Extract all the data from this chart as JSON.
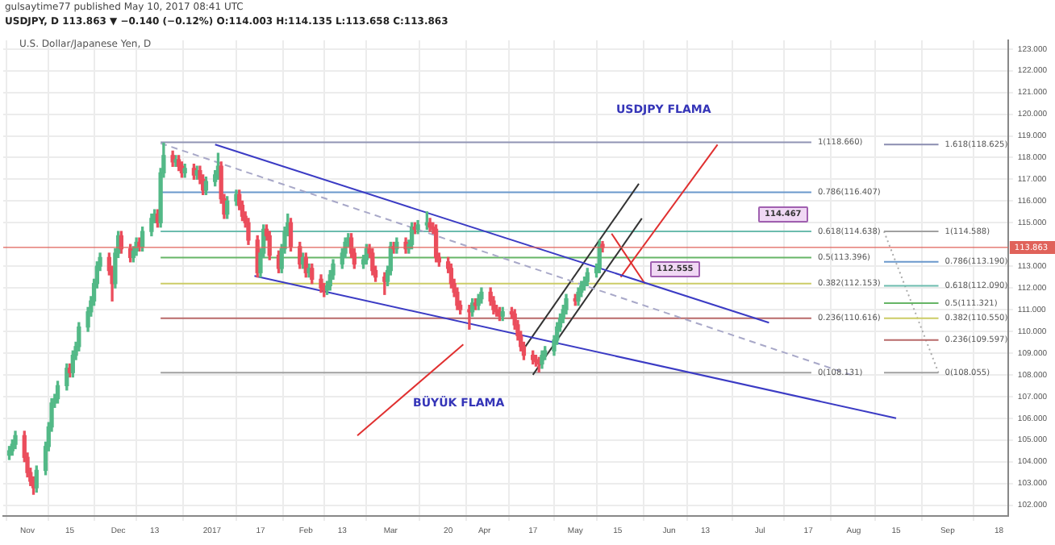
{
  "chart_data": {
    "type": "candlestick",
    "title": "gulsaytime77 published May 10, 2017 08:41 UTC",
    "subtitle": "USDJPY, D 113.863 ▼ −0.140 (−0.12%) O:114.003 H:114.135 L:113.658 C:113.863",
    "x": [
      "2016-10-26",
      "2016-10-27",
      "2016-10-28",
      "2016-10-31",
      "2016-11-01",
      "2016-11-02",
      "2016-11-03",
      "2016-11-04",
      "2016-11-07",
      "2016-11-08",
      "2016-11-09",
      "2016-11-10",
      "2016-11-11",
      "2016-11-14",
      "2016-11-15",
      "2016-11-16",
      "2016-11-17",
      "2016-11-18",
      "2016-11-21",
      "2016-11-22",
      "2016-11-23",
      "2016-11-24",
      "2016-11-25",
      "2016-11-28",
      "2016-11-29",
      "2016-11-30",
      "2016-12-01",
      "2016-12-02",
      "2016-12-05",
      "2016-12-06",
      "2016-12-07",
      "2016-12-08",
      "2016-12-09",
      "2016-12-12",
      "2016-12-13",
      "2016-12-14",
      "2016-12-15",
      "2016-12-16",
      "2016-12-19",
      "2016-12-20",
      "2016-12-21",
      "2016-12-22",
      "2016-12-23",
      "2016-12-26",
      "2016-12-27",
      "2016-12-28",
      "2016-12-29",
      "2016-12-30",
      "2017-01-02",
      "2017-01-03",
      "2017-01-04",
      "2017-01-05",
      "2017-01-06",
      "2017-01-09",
      "2017-01-10",
      "2017-01-11",
      "2017-01-12",
      "2017-01-13",
      "2017-01-16",
      "2017-01-17",
      "2017-01-18",
      "2017-01-19",
      "2017-01-20",
      "2017-01-23",
      "2017-01-24",
      "2017-01-25",
      "2017-01-26",
      "2017-01-27",
      "2017-01-30",
      "2017-01-31",
      "2017-02-01",
      "2017-02-02",
      "2017-02-03",
      "2017-02-06",
      "2017-02-07",
      "2017-02-08",
      "2017-02-09",
      "2017-02-10",
      "2017-02-13",
      "2017-02-14",
      "2017-02-15",
      "2017-02-16",
      "2017-02-17",
      "2017-02-20",
      "2017-02-21",
      "2017-02-22",
      "2017-02-23",
      "2017-02-24",
      "2017-02-27",
      "2017-02-28",
      "2017-03-01",
      "2017-03-02",
      "2017-03-03",
      "2017-03-06",
      "2017-03-07",
      "2017-03-08",
      "2017-03-09",
      "2017-03-10",
      "2017-03-13",
      "2017-03-14",
      "2017-03-15",
      "2017-03-16",
      "2017-03-17",
      "2017-03-20",
      "2017-03-21",
      "2017-03-22",
      "2017-03-23",
      "2017-03-24",
      "2017-03-27",
      "2017-03-28",
      "2017-03-29",
      "2017-03-30",
      "2017-03-31",
      "2017-04-03",
      "2017-04-04",
      "2017-04-05",
      "2017-04-06",
      "2017-04-07",
      "2017-04-10",
      "2017-04-11",
      "2017-04-12",
      "2017-04-13",
      "2017-04-14",
      "2017-04-17",
      "2017-04-18",
      "2017-04-19",
      "2017-04-20",
      "2017-04-21",
      "2017-04-24",
      "2017-04-25",
      "2017-04-26",
      "2017-04-27",
      "2017-04-28",
      "2017-05-01",
      "2017-05-02",
      "2017-05-03",
      "2017-05-04",
      "2017-05-05",
      "2017-05-08",
      "2017-05-09",
      "2017-05-10"
    ],
    "ohlc": [
      [
        104.3,
        104.7,
        104.1,
        104.5
      ],
      [
        104.5,
        105.0,
        104.3,
        104.8
      ],
      [
        104.8,
        105.4,
        104.6,
        105.2
      ],
      [
        105.2,
        105.4,
        104.0,
        104.2
      ],
      [
        104.2,
        104.4,
        103.3,
        103.5
      ],
      [
        103.5,
        103.7,
        102.9,
        103.1
      ],
      [
        103.1,
        103.3,
        102.5,
        102.8
      ],
      [
        102.8,
        103.8,
        102.6,
        103.6
      ],
      [
        103.6,
        104.9,
        103.4,
        104.7
      ],
      [
        104.7,
        105.8,
        104.5,
        105.6
      ],
      [
        105.6,
        106.9,
        105.4,
        106.7
      ],
      [
        106.7,
        107.1,
        106.5,
        106.9
      ],
      [
        106.9,
        107.7,
        106.7,
        107.5
      ],
      [
        107.5,
        108.5,
        107.3,
        108.3
      ],
      [
        108.3,
        108.5,
        107.9,
        108.1
      ],
      [
        108.1,
        109.1,
        107.9,
        108.9
      ],
      [
        108.9,
        109.5,
        108.7,
        109.3
      ],
      [
        109.3,
        110.4,
        109.1,
        110.2
      ],
      [
        110.2,
        111.1,
        110.0,
        110.9
      ],
      [
        110.9,
        111.6,
        110.7,
        111.4
      ],
      [
        111.4,
        112.4,
        111.2,
        112.2
      ],
      [
        112.2,
        113.2,
        112.0,
        113.0
      ],
      [
        113.0,
        113.6,
        112.8,
        113.4
      ],
      [
        113.4,
        113.6,
        112.6,
        112.8
      ],
      [
        112.8,
        113.0,
        111.4,
        112.2
      ],
      [
        112.2,
        113.8,
        112.0,
        113.6
      ],
      [
        113.6,
        114.6,
        113.4,
        114.4
      ],
      [
        114.4,
        114.6,
        113.6,
        113.8
      ],
      [
        113.8,
        114.0,
        113.2,
        113.4
      ],
      [
        113.4,
        113.9,
        113.2,
        113.7
      ],
      [
        113.7,
        114.3,
        113.5,
        114.1
      ],
      [
        114.1,
        114.3,
        113.7,
        113.9
      ],
      [
        113.9,
        114.8,
        113.7,
        114.6
      ],
      [
        114.6,
        115.4,
        114.4,
        115.2
      ],
      [
        115.2,
        115.6,
        115.0,
        115.4
      ],
      [
        115.4,
        115.6,
        114.8,
        115.0
      ],
      [
        115.0,
        117.5,
        114.8,
        117.3
      ],
      [
        117.3,
        118.66,
        117.1,
        118.1
      ],
      [
        118.1,
        118.3,
        117.6,
        117.8
      ],
      [
        117.8,
        118.1,
        117.6,
        117.9
      ],
      [
        117.9,
        118.1,
        117.4,
        117.6
      ],
      [
        117.6,
        117.8,
        117.1,
        117.3
      ],
      [
        117.3,
        117.7,
        117.1,
        117.5
      ],
      [
        117.5,
        117.7,
        117.0,
        117.2
      ],
      [
        117.2,
        117.6,
        117.0,
        117.4
      ],
      [
        117.4,
        117.6,
        116.8,
        117.0
      ],
      [
        117.0,
        117.2,
        116.3,
        116.5
      ],
      [
        116.5,
        117.1,
        116.3,
        116.9
      ],
      [
        116.9,
        117.4,
        116.7,
        117.2
      ],
      [
        117.2,
        118.2,
        117.0,
        117.6
      ],
      [
        117.6,
        117.8,
        115.9,
        116.1
      ],
      [
        116.1,
        116.3,
        115.2,
        115.4
      ],
      [
        115.4,
        116.2,
        115.2,
        116.0
      ],
      [
        116.0,
        116.5,
        115.8,
        116.3
      ],
      [
        116.3,
        116.5,
        115.6,
        115.8
      ],
      [
        115.8,
        116.0,
        115.1,
        115.3
      ],
      [
        115.3,
        115.5,
        114.8,
        115.0
      ],
      [
        115.0,
        115.2,
        114.0,
        114.2
      ],
      [
        114.2,
        114.4,
        112.5,
        112.7
      ],
      [
        112.7,
        113.8,
        112.5,
        113.6
      ],
      [
        113.6,
        114.9,
        113.4,
        114.7
      ],
      [
        114.7,
        114.9,
        114.2,
        114.4
      ],
      [
        114.4,
        114.6,
        113.3,
        113.5
      ],
      [
        113.5,
        113.7,
        112.7,
        112.9
      ],
      [
        112.9,
        114.0,
        112.7,
        113.8
      ],
      [
        113.8,
        114.8,
        113.6,
        114.6
      ],
      [
        114.6,
        115.4,
        114.4,
        115.0
      ],
      [
        115.0,
        115.2,
        113.7,
        113.9
      ],
      [
        113.9,
        114.1,
        112.9,
        113.1
      ],
      [
        113.1,
        113.6,
        112.9,
        113.4
      ],
      [
        113.4,
        113.6,
        112.5,
        112.7
      ],
      [
        112.7,
        113.1,
        112.5,
        112.9
      ],
      [
        112.9,
        113.1,
        112.2,
        112.4
      ],
      [
        112.4,
        112.6,
        111.8,
        112.0
      ],
      [
        112.0,
        112.2,
        111.6,
        111.9
      ],
      [
        111.9,
        112.3,
        111.7,
        112.1
      ],
      [
        112.1,
        112.8,
        111.9,
        112.6
      ],
      [
        112.6,
        113.3,
        112.4,
        113.1
      ],
      [
        113.1,
        113.8,
        112.9,
        113.6
      ],
      [
        113.6,
        114.3,
        113.4,
        114.1
      ],
      [
        114.1,
        114.5,
        113.9,
        114.3
      ],
      [
        114.3,
        114.5,
        113.4,
        113.6
      ],
      [
        113.6,
        113.8,
        112.9,
        113.1
      ],
      [
        113.1,
        113.5,
        112.9,
        113.3
      ],
      [
        113.3,
        114.0,
        113.1,
        113.8
      ],
      [
        113.8,
        114.0,
        113.4,
        113.6
      ],
      [
        113.6,
        113.8,
        112.6,
        112.8
      ],
      [
        112.8,
        113.0,
        112.3,
        112.5
      ],
      [
        112.5,
        112.7,
        111.7,
        112.3
      ],
      [
        112.3,
        113.0,
        112.1,
        112.8
      ],
      [
        112.8,
        114.1,
        112.6,
        113.9
      ],
      [
        113.9,
        114.1,
        113.6,
        113.8
      ],
      [
        113.8,
        114.3,
        113.6,
        114.1
      ],
      [
        114.1,
        114.3,
        113.6,
        113.8
      ],
      [
        113.8,
        114.2,
        113.6,
        114.0
      ],
      [
        114.0,
        115.0,
        113.8,
        114.8
      ],
      [
        114.8,
        115.0,
        114.5,
        114.7
      ],
      [
        114.7,
        115.1,
        114.5,
        114.9
      ],
      [
        114.9,
        115.5,
        114.7,
        115.0
      ],
      [
        115.0,
        115.2,
        114.6,
        114.8
      ],
      [
        114.8,
        115.0,
        114.5,
        114.7
      ],
      [
        114.7,
        114.9,
        113.2,
        113.4
      ],
      [
        113.4,
        113.6,
        113.0,
        113.2
      ],
      [
        113.2,
        113.4,
        112.7,
        112.9
      ],
      [
        112.9,
        113.1,
        112.0,
        112.2
      ],
      [
        112.2,
        112.4,
        111.6,
        111.8
      ],
      [
        111.8,
        112.0,
        111.0,
        111.2
      ],
      [
        111.2,
        111.4,
        110.8,
        111.0
      ],
      [
        111.0,
        111.2,
        110.1,
        110.9
      ],
      [
        110.9,
        111.5,
        110.7,
        111.3
      ],
      [
        111.3,
        111.5,
        111.0,
        111.2
      ],
      [
        111.2,
        111.7,
        111.0,
        111.5
      ],
      [
        111.5,
        112.0,
        111.3,
        111.8
      ],
      [
        111.8,
        112.0,
        111.2,
        111.4
      ],
      [
        111.4,
        111.6,
        110.8,
        111.0
      ],
      [
        111.0,
        111.2,
        110.7,
        110.9
      ],
      [
        110.9,
        111.1,
        110.5,
        110.7
      ],
      [
        110.7,
        111.1,
        110.5,
        110.9
      ],
      [
        110.9,
        111.1,
        110.6,
        110.8
      ],
      [
        110.8,
        111.0,
        110.1,
        110.3
      ],
      [
        110.3,
        110.5,
        109.6,
        109.8
      ],
      [
        109.8,
        110.0,
        109.1,
        109.3
      ],
      [
        109.3,
        109.5,
        108.7,
        108.9
      ],
      [
        108.9,
        109.1,
        108.5,
        108.7
      ],
      [
        108.7,
        108.9,
        108.4,
        108.6
      ],
      [
        108.6,
        108.8,
        108.13,
        108.5
      ],
      [
        108.5,
        109.1,
        108.3,
        108.9
      ],
      [
        108.9,
        109.3,
        108.7,
        109.1
      ],
      [
        109.1,
        109.8,
        108.9,
        109.6
      ],
      [
        109.6,
        110.4,
        109.4,
        110.2
      ],
      [
        110.2,
        110.8,
        110.0,
        110.6
      ],
      [
        110.6,
        111.2,
        110.4,
        111.0
      ],
      [
        111.0,
        111.7,
        110.8,
        111.5
      ],
      [
        111.5,
        111.7,
        111.2,
        111.4
      ],
      [
        111.4,
        112.0,
        111.2,
        111.8
      ],
      [
        111.8,
        112.3,
        111.6,
        112.1
      ],
      [
        112.1,
        112.5,
        111.9,
        112.3
      ],
      [
        112.3,
        112.9,
        112.1,
        112.7
      ],
      [
        112.7,
        113.1,
        112.5,
        112.9
      ],
      [
        112.9,
        114.2,
        112.7,
        114.003
      ],
      [
        114.003,
        114.135,
        113.658,
        113.863
      ]
    ],
    "series": [
      {
        "type": "line",
        "x": [
          "2017-01-02",
          "2017-07-04"
        ],
        "values": [
          118.6,
          110.4
        ],
        "color": "#3b3bc4"
      },
      {
        "type": "line",
        "x": [
          "2017-01-15",
          "2017-08-15"
        ],
        "values": [
          112.55,
          106.0
        ],
        "color": "#3b3bc4"
      },
      {
        "type": "line",
        "x": [
          "2016-12-15",
          "2017-07-31"
        ],
        "values": [
          118.66,
          108.0
        ],
        "color": "#a8a8c8",
        "line_style": "dashed"
      },
      {
        "type": "line",
        "x": [
          "2017-04-14",
          "2017-05-22"
        ],
        "values": [
          109.2,
          116.8
        ],
        "color": "#333333"
      },
      {
        "type": "line",
        "x": [
          "2017-04-17",
          "2017-05-23"
        ],
        "values": [
          108.0,
          115.2
        ],
        "color": "#333333"
      },
      {
        "type": "line",
        "x": [
          "2017-02-18",
          "2017-03-25"
        ],
        "values": [
          105.2,
          109.4
        ],
        "color": "#e03030"
      },
      {
        "type": "line",
        "x": [
          "2017-05-16",
          "2017-06-17"
        ],
        "values": [
          112.5,
          118.6
        ],
        "color": "#e03030"
      },
      {
        "type": "line",
        "x": [
          "2017-05-13",
          "2017-05-24"
        ],
        "values": [
          114.5,
          112.2
        ],
        "color": "#e03030"
      },
      {
        "type": "line",
        "x": [
          "2016-12-15",
          "2017-07-18"
        ],
        "values": [
          118.7,
          118.7
        ],
        "color": "#9094b4"
      },
      {
        "type": "line",
        "x": [
          "2016-12-15",
          "2017-07-18"
        ],
        "values": [
          116.4,
          116.4
        ],
        "color": "#6a98cc"
      },
      {
        "type": "line",
        "x": [
          "2016-12-15",
          "2017-07-18"
        ],
        "values": [
          114.6,
          114.6
        ],
        "color": "#6cbcae"
      },
      {
        "type": "line",
        "x": [
          "2016-12-15",
          "2017-07-18"
        ],
        "values": [
          113.4,
          113.4
        ],
        "color": "#66b566"
      },
      {
        "type": "line",
        "x": [
          "2016-12-15",
          "2017-07-18"
        ],
        "values": [
          112.2,
          112.2
        ],
        "color": "#cccc66"
      },
      {
        "type": "line",
        "x": [
          "2016-12-15",
          "2017-07-18"
        ],
        "values": [
          110.6,
          110.6
        ],
        "color": "#b86a6a"
      },
      {
        "type": "line",
        "x": [
          "2016-12-15",
          "2017-07-18"
        ],
        "values": [
          108.1,
          108.1
        ],
        "color": "#a0a0a0"
      },
      {
        "type": "line",
        "x": [
          "2017-08-11",
          "2017-08-29"
        ],
        "values": [
          118.6,
          118.6
        ],
        "color": "#8a8db0"
      },
      {
        "type": "line",
        "x": [
          "2017-08-11",
          "2017-08-29"
        ],
        "values": [
          114.6,
          114.6
        ],
        "color": "#a0a0a0"
      },
      {
        "type": "line",
        "x": [
          "2017-08-11",
          "2017-08-29"
        ],
        "values": [
          113.2,
          113.2
        ],
        "color": "#6a98cc"
      },
      {
        "type": "line",
        "x": [
          "2017-08-11",
          "2017-08-29"
        ],
        "values": [
          112.1,
          112.1
        ],
        "color": "#6cbcae"
      },
      {
        "type": "line",
        "x": [
          "2017-08-11",
          "2017-08-29"
        ],
        "values": [
          111.3,
          111.3
        ],
        "color": "#66b566"
      },
      {
        "type": "line",
        "x": [
          "2017-08-11",
          "2017-08-29"
        ],
        "values": [
          110.6,
          110.6
        ],
        "color": "#cccc66"
      },
      {
        "type": "line",
        "x": [
          "2017-08-11",
          "2017-08-29"
        ],
        "values": [
          109.6,
          109.6
        ],
        "color": "#b86a6a"
      },
      {
        "type": "line",
        "x": [
          "2017-08-11",
          "2017-08-29"
        ],
        "values": [
          108.1,
          108.1
        ],
        "color": "#a0a0a0"
      },
      {
        "type": "line",
        "x": [
          "2017-08-11",
          "2017-08-29"
        ],
        "values": [
          114.6,
          108.1
        ],
        "color": "#aaaaaa",
        "line_style": "dotted"
      }
    ],
    "annotations": [
      "U.S. Dollar/Japanese Yen, D",
      "USDJPY  FLAMA",
      "BÜYÜK FLAMA",
      "114.467",
      "112.555",
      {
        "text": "1(118.660)",
        "x": "2017-07-18",
        "y": 118.7
      },
      {
        "text": "0.786(116.407)",
        "x": "2017-07-18",
        "y": 116.4
      },
      {
        "text": "0.618(114.638)",
        "x": "2017-07-18",
        "y": 114.6
      },
      {
        "text": "0.5(113.396)",
        "x": "2017-07-18",
        "y": 113.4
      },
      {
        "text": "0.382(112.153)",
        "x": "2017-07-18",
        "y": 112.2
      },
      {
        "text": "0.236(110.616)",
        "x": "2017-07-18",
        "y": 110.6
      },
      {
        "text": "0(108.131)",
        "x": "2017-07-18",
        "y": 108.1
      },
      {
        "text": "1.618(118.625)",
        "x": "2017-08-29",
        "y": 118.6
      },
      {
        "text": "1(114.588)",
        "x": "2017-08-29",
        "y": 114.6
      },
      {
        "text": "0.786(113.190)",
        "x": "2017-08-29",
        "y": 113.2
      },
      {
        "text": "0.618(112.090)",
        "x": "2017-08-29",
        "y": 112.1
      },
      {
        "text": "0.5(111.321)",
        "x": "2017-08-29",
        "y": 111.3
      },
      {
        "text": "0.382(110.550)",
        "x": "2017-08-29",
        "y": 110.6
      },
      {
        "text": "0.236(109.597)",
        "x": "2017-08-29",
        "y": 109.6
      },
      {
        "text": "0(108.055)",
        "x": "2017-08-29",
        "y": 108.1
      }
    ],
    "ref_lines": [
      {
        "axis": "y",
        "value": 113.863,
        "label": "113.863",
        "color": "#e0625a"
      }
    ],
    "xlim": [
      "2016-10-24",
      "2017-09-21"
    ],
    "xticks": [
      {
        "value": "2016-11-01",
        "label": "Nov"
      },
      {
        "value": "2016-11-15",
        "label": "15"
      },
      {
        "value": "2016-12-01",
        "label": "Dec"
      },
      {
        "value": "2016-12-13",
        "label": "13"
      },
      {
        "value": "2017-01-01",
        "label": "2017"
      },
      {
        "value": "2017-01-17",
        "label": "17"
      },
      {
        "value": "2017-02-01",
        "label": "Feb"
      },
      {
        "value": "2017-02-13",
        "label": "13"
      },
      {
        "value": "2017-03-01",
        "label": "Mar"
      },
      {
        "value": "2017-03-20",
        "label": "20"
      },
      {
        "value": "2017-04-01",
        "label": "Apr"
      },
      {
        "value": "2017-04-17",
        "label": "17"
      },
      {
        "value": "2017-05-01",
        "label": "May"
      },
      {
        "value": "2017-05-15",
        "label": "15"
      },
      {
        "value": "2017-06-01",
        "label": "Jun"
      },
      {
        "value": "2017-06-13",
        "label": "13"
      },
      {
        "value": "2017-07-01",
        "label": "Jul"
      },
      {
        "value": "2017-07-17",
        "label": "17"
      },
      {
        "value": "2017-08-01",
        "label": "Aug"
      },
      {
        "value": "2017-08-15",
        "label": "15"
      },
      {
        "value": "2017-09-01",
        "label": "Sep"
      },
      {
        "value": "2017-09-18",
        "label": "18"
      }
    ],
    "ylim": [
      101.5,
      123.4
    ],
    "yticks": [
      {
        "value": 102,
        "label": "102.000"
      },
      {
        "value": 103,
        "label": "103.000"
      },
      {
        "value": 104,
        "label": "104.000"
      },
      {
        "value": 105,
        "label": "105.000"
      },
      {
        "value": 106,
        "label": "106.000"
      },
      {
        "value": 107,
        "label": "107.000"
      },
      {
        "value": 108,
        "label": "108.000"
      },
      {
        "value": 109,
        "label": "109.000"
      },
      {
        "value": 110,
        "label": "110.000"
      },
      {
        "value": 111,
        "label": "111.000"
      },
      {
        "value": 112,
        "label": "112.000"
      },
      {
        "value": 113,
        "label": "113.000"
      },
      {
        "value": 115,
        "label": "115.000"
      },
      {
        "value": 116,
        "label": "116.000"
      },
      {
        "value": 117,
        "label": "117.000"
      },
      {
        "value": 118,
        "label": "118.000"
      },
      {
        "value": 119,
        "label": "119.000"
      },
      {
        "value": 120,
        "label": "120.000"
      },
      {
        "value": 121,
        "label": "121.000"
      },
      {
        "value": 122,
        "label": "122.000"
      },
      {
        "value": 123,
        "label": "123.000"
      }
    ],
    "grid": true,
    "legend": false
  }
}
